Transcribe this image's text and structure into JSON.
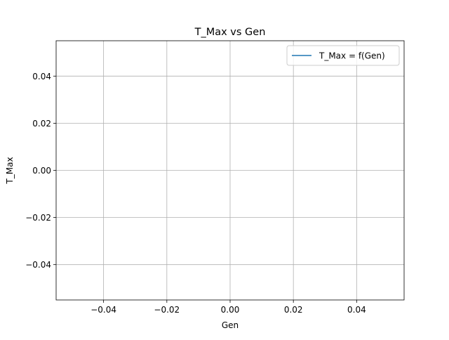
{
  "chart_data": {
    "type": "line",
    "title": "T_Max vs Gen",
    "xlabel": "Gen",
    "ylabel": "T_Max",
    "xlim": [
      -0.055,
      0.055
    ],
    "ylim": [
      -0.055,
      0.055
    ],
    "x_ticks": [
      -0.04,
      -0.02,
      0.0,
      0.02,
      0.04
    ],
    "x_tick_labels": [
      "−0.04",
      "−0.02",
      "0.00",
      "0.02",
      "0.04"
    ],
    "y_ticks": [
      -0.04,
      -0.02,
      0.0,
      0.02,
      0.04
    ],
    "y_tick_labels": [
      "−0.04",
      "−0.02",
      "0.00",
      "0.02",
      "0.04"
    ],
    "grid": true,
    "legend_position": "top-right",
    "series": [
      {
        "name": "T_Max = f(Gen)",
        "color": "#1f77b4",
        "x": [],
        "y": []
      }
    ]
  }
}
